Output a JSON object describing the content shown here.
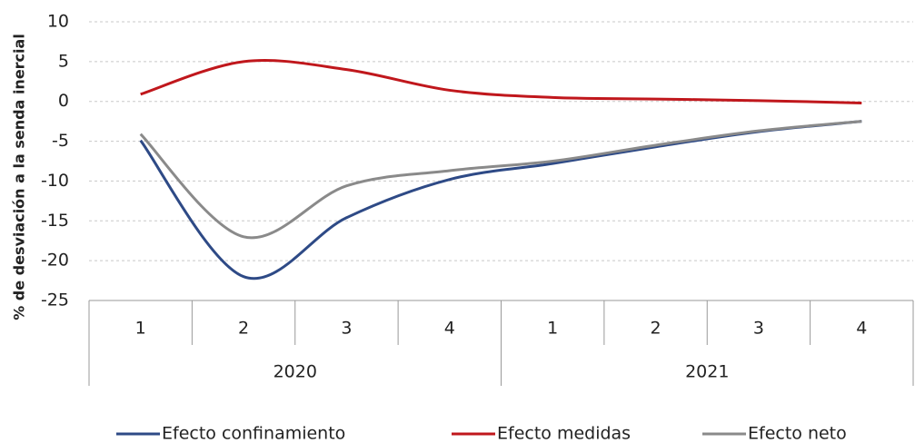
{
  "chart_data": {
    "type": "line",
    "y_label": "% de desviación a la senda inercial",
    "categories": [
      "1",
      "2",
      "3",
      "4",
      "1",
      "2",
      "3",
      "4"
    ],
    "category_groups": [
      "2020",
      "2021"
    ],
    "series": [
      {
        "name": "Efecto confinamiento",
        "color": "#2e4a86",
        "values": [
          -4.9,
          -22,
          -14.6,
          -9.8,
          -7.8,
          -5.7,
          -3.8,
          -2.5
        ]
      },
      {
        "name": "Efecto medidas",
        "color": "#c0171c",
        "values": [
          0.9,
          5.0,
          4.0,
          1.4,
          0.5,
          0.3,
          0.1,
          -0.2
        ]
      },
      {
        "name": "Efecto neto",
        "color": "#8a8a8a",
        "values": [
          -4.1,
          -17,
          -10.6,
          -8.7,
          -7.5,
          -5.5,
          -3.7,
          -2.5
        ]
      }
    ],
    "ylim": [
      -25,
      10
    ],
    "yticks": [
      -25,
      -20,
      -15,
      -10,
      -5,
      0,
      5,
      10
    ],
    "grid": true,
    "legend": "bottom"
  }
}
